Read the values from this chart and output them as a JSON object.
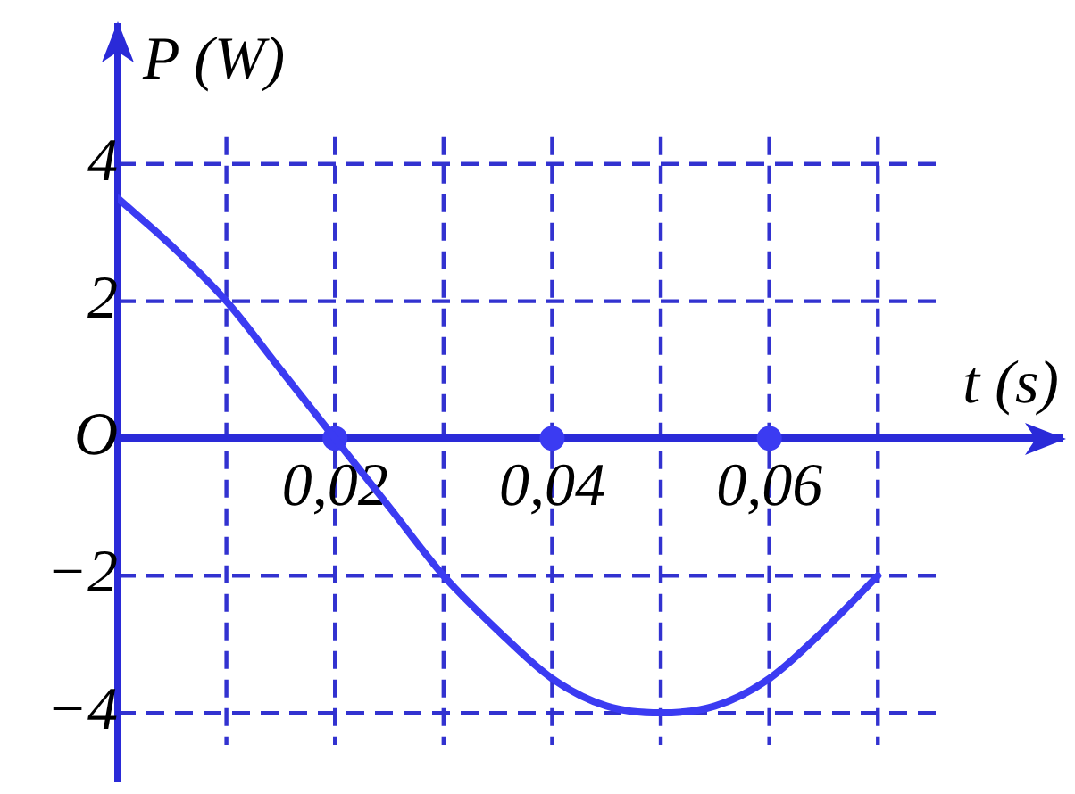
{
  "chart_data": {
    "type": "line",
    "xlabel": "t (s)",
    "ylabel": "P (W)",
    "xlim": [
      0,
      0.087
    ],
    "ylim": [
      -5,
      6
    ],
    "xticks": [
      {
        "value": 0.01,
        "label": null
      },
      {
        "value": 0.02,
        "label": "0,02"
      },
      {
        "value": 0.03,
        "label": null
      },
      {
        "value": 0.04,
        "label": "0,04"
      },
      {
        "value": 0.05,
        "label": null
      },
      {
        "value": 0.06,
        "label": "0,06"
      },
      {
        "value": 0.07,
        "label": null
      }
    ],
    "yticks": [
      {
        "value": -4,
        "label": "−4"
      },
      {
        "value": -2,
        "label": "−2"
      },
      {
        "value": 0,
        "label": "O"
      },
      2,
      4
    ],
    "grid": true,
    "line_style": "solid",
    "series": [
      {
        "type": "line",
        "color": "#3b3bf2",
        "marker": "none",
        "x": [
          0,
          0.005,
          0.01,
          0.015,
          0.02,
          0.025,
          0.03,
          0.035,
          0.04,
          0.045,
          0.05,
          0.055,
          0.06,
          0.065,
          0.07
        ],
        "values": [
          3.5,
          2.8,
          2,
          1,
          0,
          -1,
          -2,
          -2.8,
          -3.5,
          -3.9,
          -4,
          -3.9,
          -3.5,
          -2.8,
          -2
        ]
      },
      {
        "type": "scatter",
        "color": "#3b3bf2",
        "marker": "circle",
        "x": [
          0.02,
          0.04,
          0.06
        ],
        "values": [
          0,
          0,
          0
        ]
      }
    ]
  }
}
